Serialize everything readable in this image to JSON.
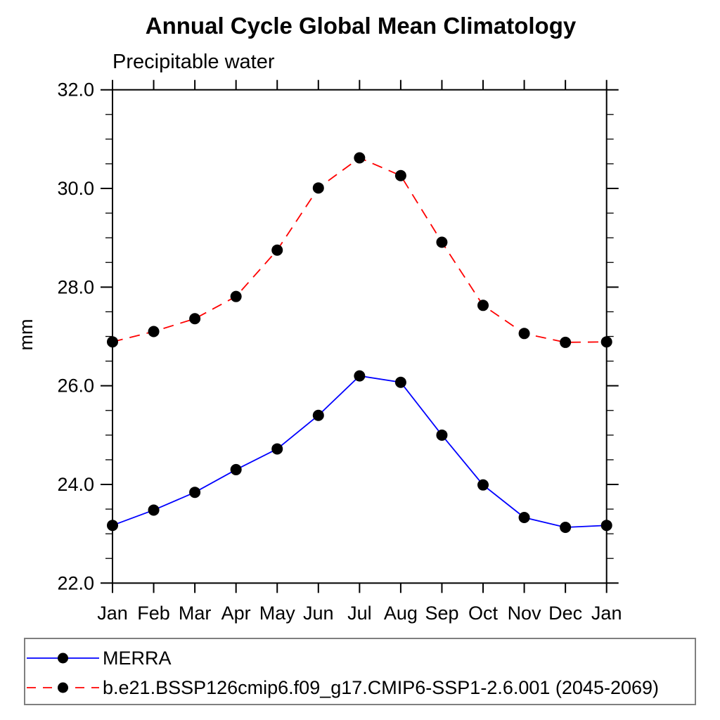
{
  "title": "Annual Cycle Global Mean Climatology",
  "subtitle": "Precipitable water",
  "ylabel": "mm",
  "colors": {
    "merra_line": "#0000ff",
    "model_line": "#ff0000",
    "marker": "#000000",
    "frame": "#000000",
    "legend_border": "#7f7f7f",
    "background": "#ffffff"
  },
  "chart_data": {
    "type": "line",
    "title": "Annual Cycle Global Mean Climatology",
    "subtitle": "Precipitable water",
    "xlabel": "",
    "ylabel": "mm",
    "categories": [
      "Jan",
      "Feb",
      "Mar",
      "Apr",
      "May",
      "Jun",
      "Jul",
      "Aug",
      "Sep",
      "Oct",
      "Nov",
      "Dec",
      "Jan"
    ],
    "ylim": [
      22.0,
      32.0
    ],
    "ytick_major": [
      22.0,
      24.0,
      26.0,
      28.0,
      30.0,
      32.0
    ],
    "ytick_labels": [
      "22.0",
      "24.0",
      "26.0",
      "28.0",
      "30.0",
      "32.0"
    ],
    "ytick_minor_step": 0.5,
    "grid": false,
    "legend_position": "bottom",
    "series": [
      {
        "name": "MERRA",
        "line_style": "solid",
        "color": "#0000ff",
        "marker": "filled-circle",
        "marker_color": "#000000",
        "values": [
          23.17,
          23.48,
          23.84,
          24.3,
          24.72,
          25.4,
          26.2,
          26.07,
          25.0,
          23.99,
          23.33,
          23.13,
          23.17
        ]
      },
      {
        "name": "b.e21.BSSP126cmip6.f09_g17.CMIP6-SSP1-2.6.001 (2045-2069)",
        "line_style": "dashed",
        "color": "#ff0000",
        "marker": "filled-circle",
        "marker_color": "#000000",
        "values": [
          26.89,
          27.1,
          27.36,
          27.81,
          28.75,
          30.01,
          30.62,
          30.26,
          28.91,
          27.63,
          27.06,
          26.88,
          26.89
        ]
      }
    ]
  }
}
